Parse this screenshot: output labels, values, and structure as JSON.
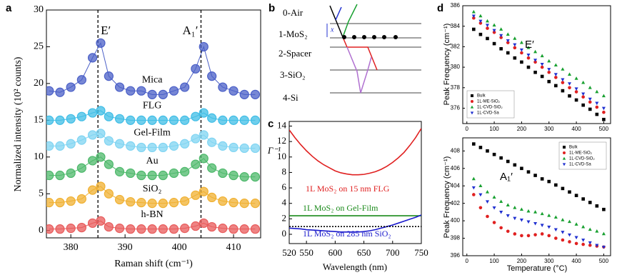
{
  "diagram": {
    "panel_label": "b",
    "layers": [
      "0-Air",
      "1-MoS₂",
      "2-Spacer",
      "3-SiO₂",
      "4-Si"
    ],
    "thickness_label": "x"
  },
  "chart_data": [
    {
      "type": "line",
      "panel_label": "a",
      "x_label": "Raman shift (cm⁻¹)",
      "y_label": "Normalized intensity (10² counts)",
      "x": [
        376,
        378,
        380,
        382,
        384,
        385.5,
        387,
        389,
        391,
        393,
        395,
        397,
        399,
        401,
        403,
        404.5,
        406,
        408,
        410,
        412,
        414
      ],
      "xlim": [
        375.5,
        415
      ],
      "xticks": [
        380,
        390,
        400,
        410
      ],
      "ylim": [
        -1,
        30
      ],
      "yticks": [
        0,
        5,
        10,
        15,
        20,
        25,
        30
      ],
      "marker": "o",
      "vlines": [
        385,
        404
      ],
      "vline_labels": [
        "E′",
        "A₁′"
      ],
      "series": [
        {
          "name": "Mica",
          "color": "#4a5fc7",
          "values": [
            19,
            18.8,
            19.5,
            20.5,
            23.5,
            25.5,
            21,
            19.5,
            19,
            19,
            18.5,
            18.5,
            19,
            19.5,
            22,
            25,
            21,
            19.5,
            19,
            18.5,
            18.5
          ]
        },
        {
          "name": "FLG",
          "color": "#3fbde6",
          "values": [
            15,
            15,
            15.2,
            15.5,
            16,
            16.3,
            15.5,
            15.2,
            15,
            15,
            15,
            15,
            15,
            15,
            15.5,
            16,
            15.3,
            15,
            15,
            15,
            15
          ]
        },
        {
          "name": "Gel-Film",
          "color": "#7fd4f2",
          "values": [
            11.5,
            11.5,
            11.8,
            12.3,
            13,
            13.2,
            12.2,
            11.8,
            11.5,
            11.3,
            11.3,
            11.3,
            11.5,
            11.8,
            12.5,
            13,
            12,
            11.5,
            11.3,
            11.2,
            11.2
          ]
        },
        {
          "name": "Au",
          "color": "#4cb86a",
          "values": [
            7.5,
            7.5,
            7.8,
            8.5,
            9.5,
            10,
            9,
            8,
            7.8,
            7.5,
            7.5,
            7.5,
            7.8,
            8,
            9,
            9.8,
            8.5,
            7.8,
            7.5,
            7.3,
            7.3
          ]
        },
        {
          "name": "SiO₂",
          "color": "#f0b030",
          "values": [
            3.8,
            3.8,
            4,
            4.3,
            5.5,
            6,
            5,
            4.2,
            3.9,
            3.8,
            3.7,
            3.7,
            3.8,
            4,
            4.8,
            5.3,
            4.5,
            4,
            3.8,
            3.7,
            3.7
          ]
        },
        {
          "name": "h-BN",
          "color": "#e85a5a",
          "values": [
            0.2,
            0.2,
            0.3,
            0.4,
            1,
            1.3,
            0.5,
            0.3,
            0.2,
            0.2,
            0.2,
            0.2,
            0.2,
            0.3,
            0.6,
            1,
            0.5,
            0.3,
            0.2,
            0.2,
            0.2
          ]
        }
      ]
    },
    {
      "type": "line",
      "panel_label": "c",
      "x_label": "Wavelength (nm)",
      "y_label": "Γ⁻¹",
      "x": [
        520,
        530,
        540,
        550,
        560,
        570,
        580,
        590,
        600,
        610,
        620,
        630,
        640,
        650,
        660,
        670,
        680,
        690,
        700,
        710,
        720,
        730,
        740,
        750
      ],
      "xlim": [
        520,
        750
      ],
      "xticks": [
        520,
        550,
        600,
        650,
        700,
        750
      ],
      "ylim": [
        -1.2,
        14.6
      ],
      "yticks": [
        0,
        2,
        4,
        6,
        8,
        10,
        12,
        14
      ],
      "series": [
        {
          "name": "1L MoS₂ on 15 nm FLG",
          "color": "#e02020",
          "values": [
            13.5,
            12.5,
            11.6,
            10.8,
            10.1,
            9.5,
            9.0,
            8.6,
            8.2,
            7.95,
            7.8,
            7.7,
            7.7,
            7.75,
            7.9,
            8.1,
            8.4,
            8.8,
            9.3,
            9.9,
            10.6,
            11.5,
            12.5,
            13.7
          ]
        },
        {
          "name": "1L MoS₂ on Gel-Film",
          "color": "#1a8a1a",
          "values": [
            2.4,
            2.4,
            2.4,
            2.4,
            2.4,
            2.4,
            2.4,
            2.4,
            2.4,
            2.4,
            2.4,
            2.4,
            2.4,
            2.4,
            2.4,
            2.4,
            2.4,
            2.4,
            2.4,
            2.4,
            2.4,
            2.4,
            2.4,
            2.4
          ]
        },
        {
          "name": "1L MoS₂ on 285 nm SiO₂",
          "color": "#1a1acc",
          "values": [
            0.8,
            0.75,
            0.7,
            0.6,
            0.55,
            0.5,
            0.45,
            0.4,
            0.35,
            0.3,
            0.3,
            0.3,
            0.3,
            0.35,
            0.45,
            0.6,
            0.8,
            1.0,
            1.2,
            1.45,
            1.7,
            1.95,
            2.2,
            2.5
          ]
        },
        {
          "color": "#000000",
          "dash": true,
          "values": [
            1,
            1,
            1,
            1,
            1,
            1,
            1,
            1,
            1,
            1,
            1,
            1,
            1,
            1,
            1,
            1,
            1,
            1,
            1,
            1,
            1,
            1,
            1,
            1
          ]
        }
      ]
    },
    {
      "type": "scatter",
      "panel_label": "d",
      "y_label": "Peak Frequency (cm⁻¹)",
      "annotation": "E′",
      "x": [
        25,
        50,
        75,
        100,
        125,
        150,
        175,
        200,
        225,
        250,
        275,
        300,
        325,
        350,
        375,
        400,
        425,
        450,
        475,
        500
      ],
      "xlim": [
        -15,
        525
      ],
      "xticks": [
        0,
        100,
        200,
        300,
        400,
        500
      ],
      "ylim": [
        374.5,
        386
      ],
      "yticks": [
        376,
        378,
        380,
        382,
        384,
        386
      ],
      "legend": "lower left",
      "series": [
        {
          "name": "Bulk",
          "color": "#000000",
          "marker": "s",
          "values": [
            383.7,
            383.2,
            382.8,
            382.3,
            381.8,
            381.4,
            380.9,
            380.5,
            380.0,
            379.5,
            379.1,
            378.6,
            378.2,
            377.7,
            377.2,
            376.8,
            376.3,
            375.9,
            375.4,
            374.9
          ]
        },
        {
          "name": "1L-ME-SiO₂",
          "color": "#e02020",
          "marker": "o",
          "values": [
            384.8,
            384.3,
            383.8,
            383.4,
            382.9,
            382.4,
            381.9,
            381.4,
            380.9,
            380.5,
            380.0,
            379.5,
            379.0,
            378.5,
            378.0,
            377.6,
            377.1,
            376.6,
            376.1,
            375.6
          ]
        },
        {
          "name": "1L-CVD-SiO₂",
          "color": "#18a030",
          "marker": "^",
          "values": [
            385.4,
            385.0,
            384.5,
            384.1,
            383.7,
            383.2,
            382.8,
            382.4,
            381.9,
            381.5,
            381.1,
            380.6,
            380.2,
            379.8,
            379.3,
            378.9,
            378.5,
            378.0,
            377.6,
            377.2
          ]
        },
        {
          "name": "1L-CVD-Sa",
          "color": "#2030d0",
          "marker": "v",
          "values": [
            385.0,
            384.5,
            384.1,
            383.6,
            383.1,
            382.6,
            382.2,
            381.7,
            381.2,
            380.7,
            380.3,
            379.8,
            379.3,
            378.8,
            378.4,
            377.9,
            377.4,
            376.9,
            376.5,
            376.0
          ]
        }
      ]
    },
    {
      "type": "scatter",
      "y_label": "Peak Frequency (cm⁻¹)",
      "x_label": "Temperature (°C)",
      "annotation": "A₁′",
      "x": [
        25,
        50,
        75,
        100,
        125,
        150,
        175,
        200,
        225,
        250,
        275,
        300,
        325,
        350,
        375,
        400,
        425,
        450,
        475,
        500
      ],
      "xlim": [
        -15,
        525
      ],
      "xticks": [
        0,
        100,
        200,
        300,
        400,
        500
      ],
      "ylim": [
        396,
        409.5
      ],
      "yticks": [
        396,
        398,
        400,
        402,
        404,
        406,
        408
      ],
      "legend": "upper right",
      "series": [
        {
          "name": "Bulk",
          "color": "#000000",
          "marker": "s",
          "values": [
            408.8,
            408.4,
            408.0,
            407.6,
            407.2,
            406.8,
            406.4,
            406.0,
            405.6,
            405.2,
            404.8,
            404.5,
            404.1,
            403.7,
            403.3,
            402.9,
            402.5,
            402.1,
            401.7,
            401.3
          ]
        },
        {
          "name": "1L-ME-SiO₂",
          "color": "#e02020",
          "marker": "o",
          "values": [
            403.0,
            401.5,
            400.5,
            399.8,
            399.2,
            398.8,
            398.5,
            398.3,
            398.3,
            398.4,
            398.5,
            398.3,
            398.0,
            397.8,
            397.6,
            397.4,
            397.3,
            397.2,
            397.1,
            397.0
          ]
        },
        {
          "name": "1L-CVD-SiO₂",
          "color": "#18a030",
          "marker": "^",
          "values": [
            404.8,
            404.0,
            403.3,
            402.7,
            402.2,
            401.8,
            401.5,
            401.3,
            401.1,
            401.0,
            400.8,
            400.6,
            400.4,
            400.1,
            399.9,
            399.6,
            399.3,
            399.0,
            398.8,
            398.5
          ]
        },
        {
          "name": "1L-CVD-Sa",
          "color": "#2030d0",
          "marker": "v",
          "values": [
            403.8,
            403.0,
            402.2,
            401.5,
            401.0,
            400.6,
            400.3,
            400.1,
            399.9,
            399.7,
            399.5,
            399.3,
            399.0,
            398.7,
            398.4,
            398.1,
            397.8,
            397.5,
            397.2,
            397.0
          ]
        }
      ]
    }
  ]
}
